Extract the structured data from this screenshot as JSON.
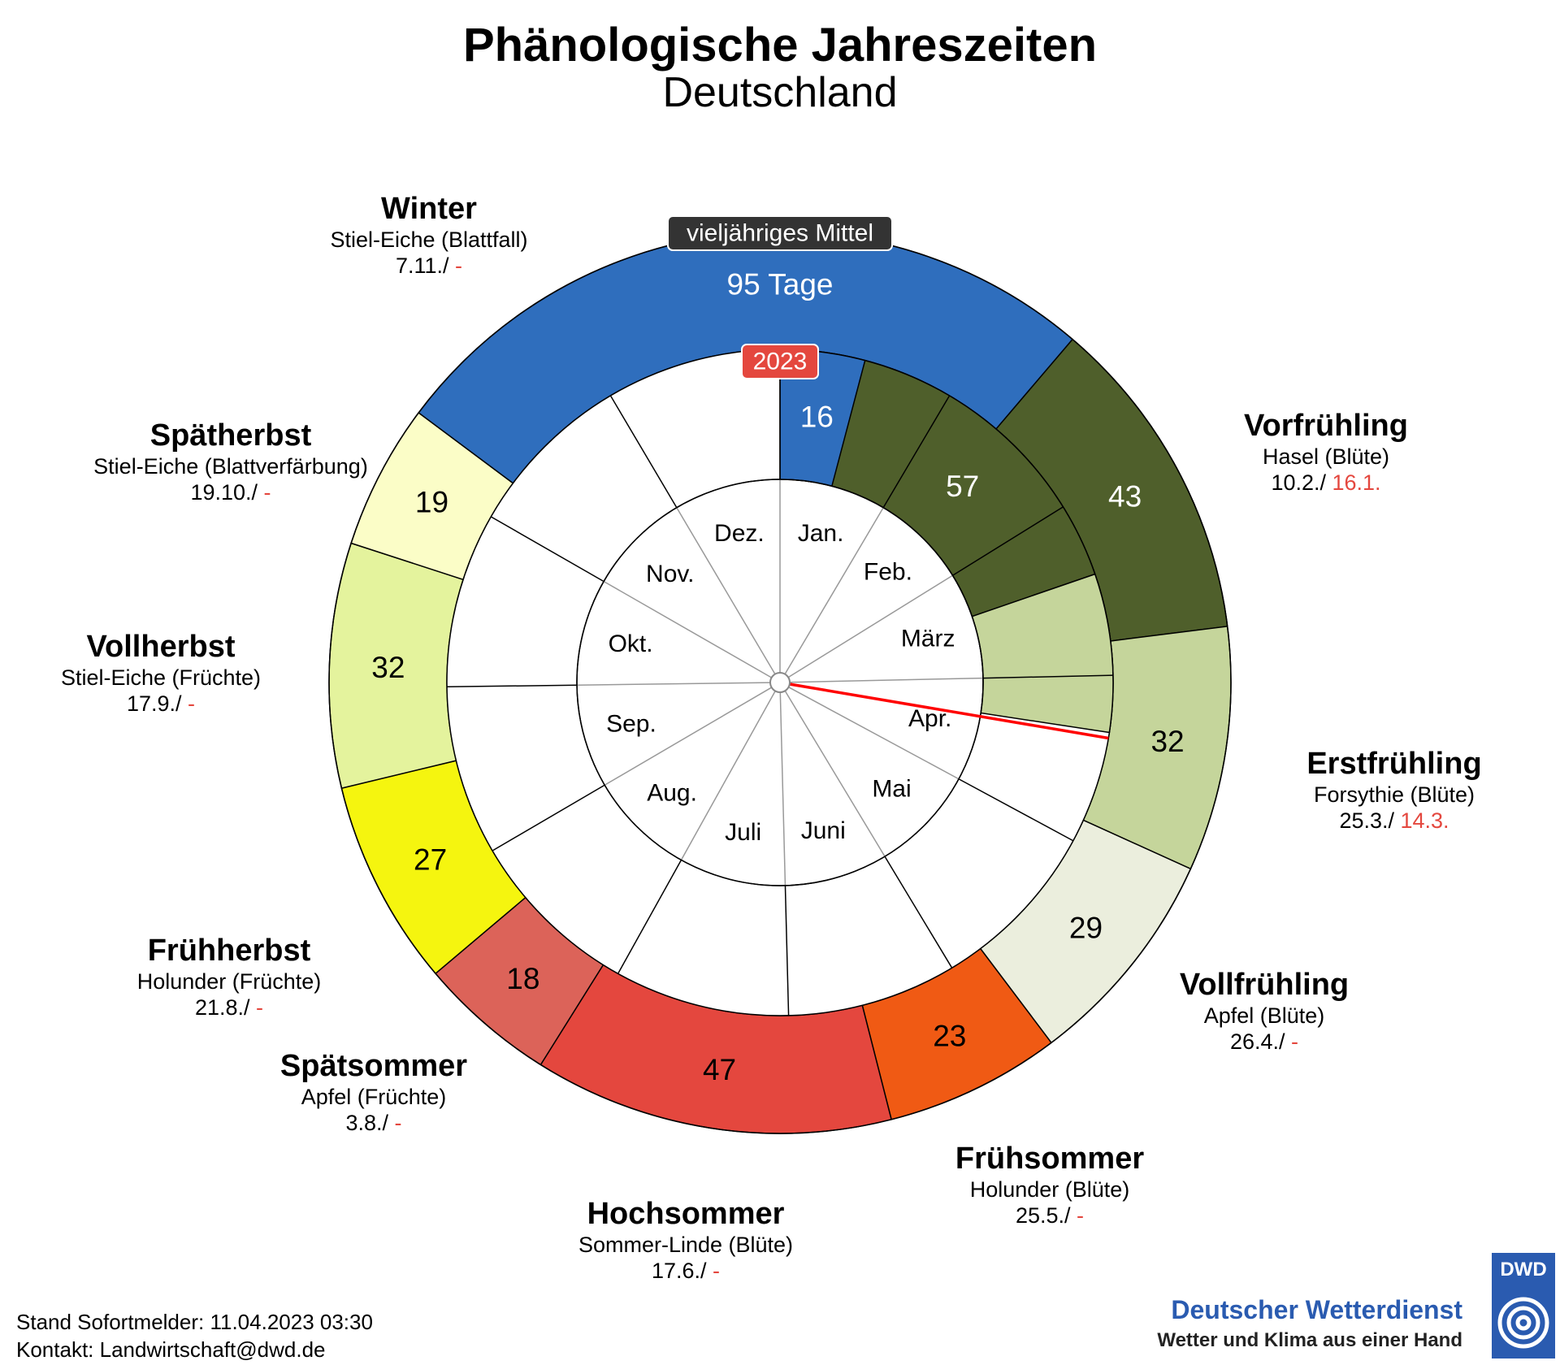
{
  "header": {
    "title": "Phänologische Jahreszeiten",
    "subtitle": "Deutschland"
  },
  "chart_data": {
    "type": "radial-bar",
    "title": "Phänologische Jahreszeiten",
    "subtitle": "Deutschland",
    "outer_ring_label": "vieljähriges Mittel",
    "inner_ring_label": "2023",
    "months": [
      "Jan.",
      "Feb.",
      "März",
      "Apr.",
      "Mai",
      "Juni",
      "Juli",
      "Aug.",
      "Sep.",
      "Okt.",
      "Nov.",
      "Dez."
    ],
    "seasons_mean": [
      {
        "name": "Vorfrühling",
        "days": 43,
        "color": "#4f5f2b",
        "label_color": "#ffffff"
      },
      {
        "name": "Erstfrühling",
        "days": 32,
        "color": "#c5d59b",
        "label_color": "#000000"
      },
      {
        "name": "Vollfrühling",
        "days": 29,
        "color": "#ebeedd",
        "label_color": "#000000"
      },
      {
        "name": "Frühsommer",
        "days": 23,
        "color": "#f05a14",
        "label_color": "#000000"
      },
      {
        "name": "Hochsommer",
        "days": 47,
        "color": "#e4473e",
        "label_color": "#000000"
      },
      {
        "name": "Spätsommer",
        "days": 18,
        "color": "#dc6359",
        "label_color": "#000000"
      },
      {
        "name": "Frühherbst",
        "days": 27,
        "color": "#f5f50f",
        "label_color": "#000000"
      },
      {
        "name": "Vollherbst",
        "days": 32,
        "color": "#e4f39d",
        "label_color": "#000000"
      },
      {
        "name": "Spätherbst",
        "days": 19,
        "color": "#fbfdc7",
        "label_color": "#000000"
      },
      {
        "name": "Winter",
        "days": 95,
        "color": "#2f6ebd",
        "label_color": "#ffffff"
      }
    ],
    "mean_start_day": 41,
    "winter_label": "95 Tage",
    "seasons_2023": [
      {
        "name": "Winter",
        "start_day": 1,
        "days": 16,
        "label": "16",
        "color": "#2f6ebd",
        "label_color": "#ffffff"
      },
      {
        "name": "Vorfrühling",
        "start_day": 16,
        "days": 57,
        "label": "57",
        "color": "#4f5f2b",
        "label_color": "#ffffff"
      },
      {
        "name": "Erstfrühling",
        "start_day": 73,
        "days": 28,
        "label": "",
        "color": "#c5d59b",
        "label_color": "#000000"
      }
    ],
    "current_day": 101,
    "current_line_color": "#ff0000",
    "season_labels": [
      {
        "name": "Vorfrühling",
        "plant": "Hasel (Blüte)",
        "mean_date": "10.2./",
        "date_2023": "16.1."
      },
      {
        "name": "Erstfrühling",
        "plant": "Forsythie (Blüte)",
        "mean_date": "25.3./",
        "date_2023": "14.3."
      },
      {
        "name": "Vollfrühling",
        "plant": "Apfel (Blüte)",
        "mean_date": "26.4./",
        "date_2023": "-"
      },
      {
        "name": "Frühsommer",
        "plant": "Holunder (Blüte)",
        "mean_date": "25.5./",
        "date_2023": "-"
      },
      {
        "name": "Hochsommer",
        "plant": "Sommer-Linde (Blüte)",
        "mean_date": "17.6./",
        "date_2023": "-"
      },
      {
        "name": "Spätsommer",
        "plant": "Apfel (Früchte)",
        "mean_date": "3.8./",
        "date_2023": "-"
      },
      {
        "name": "Frühherbst",
        "plant": "Holunder (Früchte)",
        "mean_date": "21.8./",
        "date_2023": "-"
      },
      {
        "name": "Vollherbst",
        "plant": "Stiel-Eiche (Früchte)",
        "mean_date": "17.9./",
        "date_2023": "-"
      },
      {
        "name": "Spätherbst",
        "plant": "Stiel-Eiche (Blattverfärbung)",
        "mean_date": "19.10./",
        "date_2023": "-"
      },
      {
        "name": "Winter",
        "plant": "Stiel-Eiche (Blattfall)",
        "mean_date": "7.11./",
        "date_2023": "-"
      }
    ]
  },
  "footer": {
    "stand": "Stand Sofortmelder: 11.04.2023 03:30",
    "kontakt": "Kontakt: Landwirtschaft@dwd.de"
  },
  "brand": {
    "name": "Deutscher Wetterdienst",
    "slogan": "Wetter und Klima aus einer Hand",
    "logo_text": "DWD",
    "logo_icon": "spiral-icon",
    "color": "#2a5bb0"
  }
}
